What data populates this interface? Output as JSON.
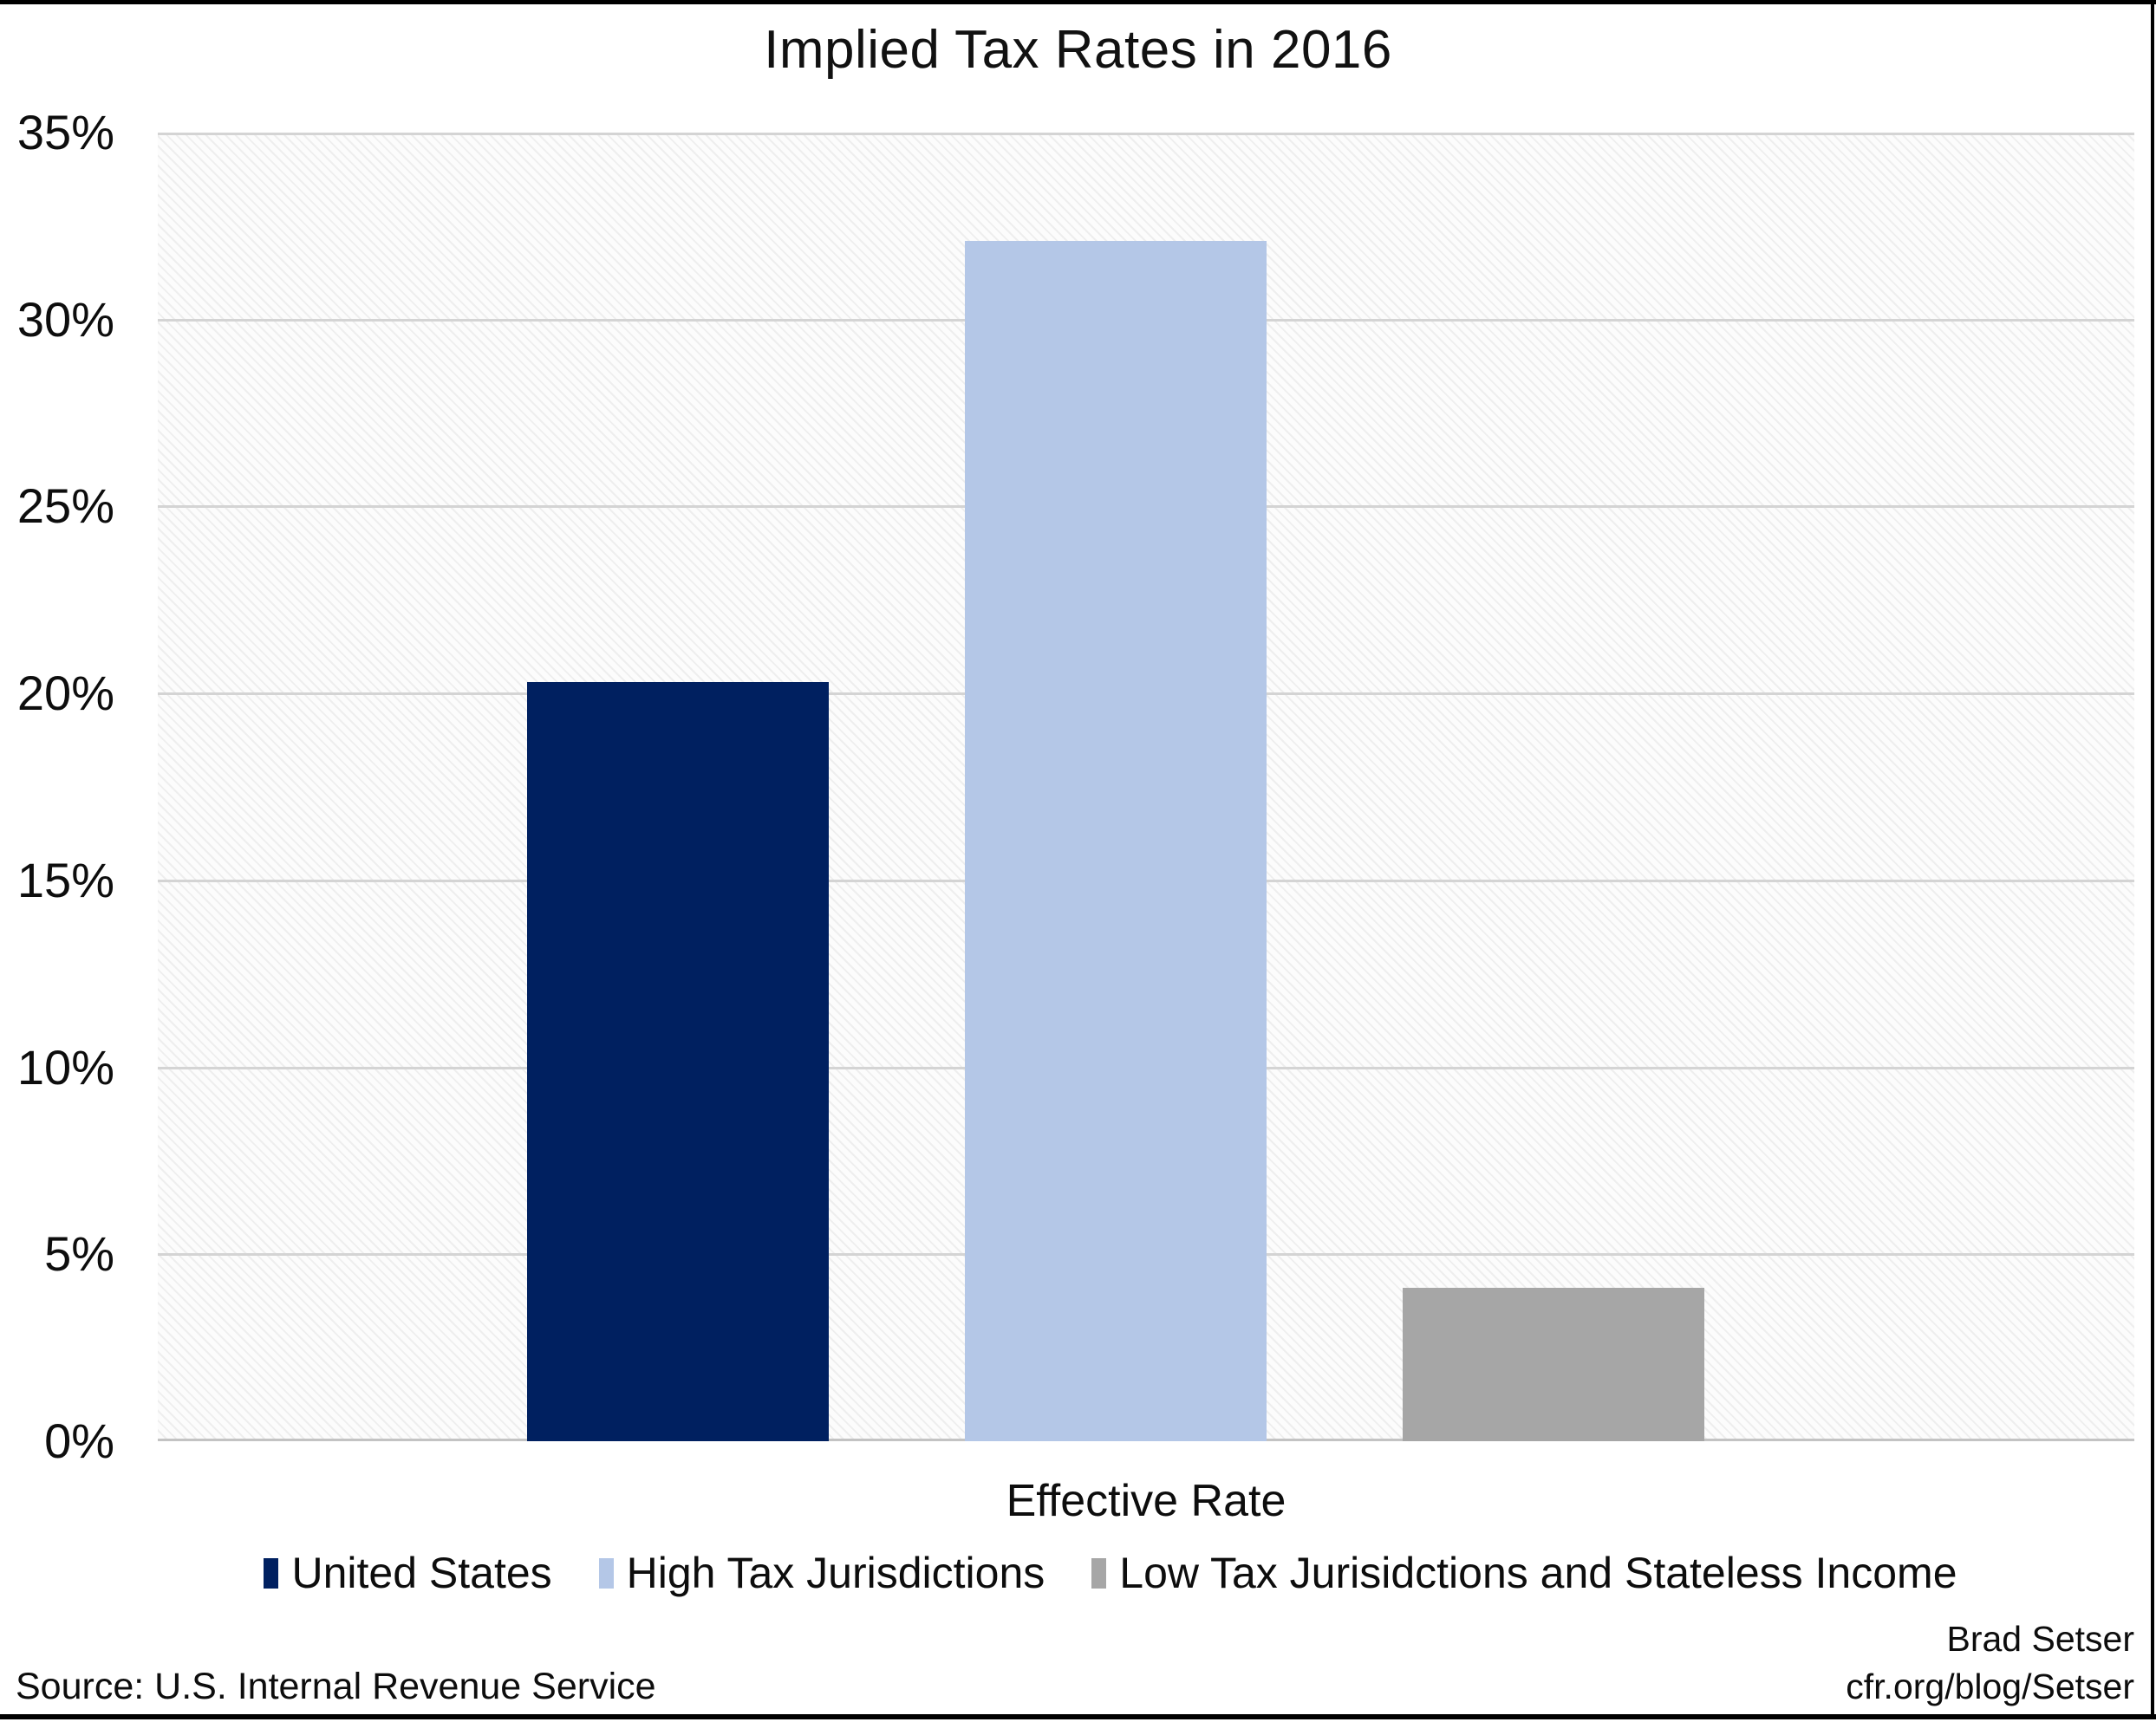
{
  "title": "Implied Tax Rates in 2016",
  "chart_data": {
    "type": "bar",
    "categories": [
      "Effective Rate"
    ],
    "series": [
      {
        "name": "United States",
        "value": 20.3,
        "color": "#002060"
      },
      {
        "name": "High Tax Jurisdictions",
        "value": 32.1,
        "color": "#b4c7e7"
      },
      {
        "name": "Low Tax Jurisidctions and Stateless Income",
        "value": 4.1,
        "color": "#a6a6a6"
      }
    ],
    "xlabel": "Effective Rate",
    "ylabel": "",
    "ylim": [
      0,
      35
    ],
    "yticks": [
      {
        "value": 0,
        "label": "0%"
      },
      {
        "value": 5,
        "label": "5%"
      },
      {
        "value": 10,
        "label": "10%"
      },
      {
        "value": 15,
        "label": "15%"
      },
      {
        "value": 20,
        "label": "20%"
      },
      {
        "value": 25,
        "label": "25%"
      },
      {
        "value": 30,
        "label": "30%"
      },
      {
        "value": 35,
        "label": "35%"
      }
    ],
    "grid": true,
    "legend_position": "bottom"
  },
  "footer": {
    "source": "Source: U.S. Internal Revenue Service",
    "credit_line1": "Brad Setser",
    "credit_line2": "cfr.org/blog/Setser"
  },
  "colors": {
    "gridline": "#d4d4d4",
    "axis_line": "#c3c3c3",
    "plot_hatch": "#ececec",
    "border_rule": "#000000"
  }
}
